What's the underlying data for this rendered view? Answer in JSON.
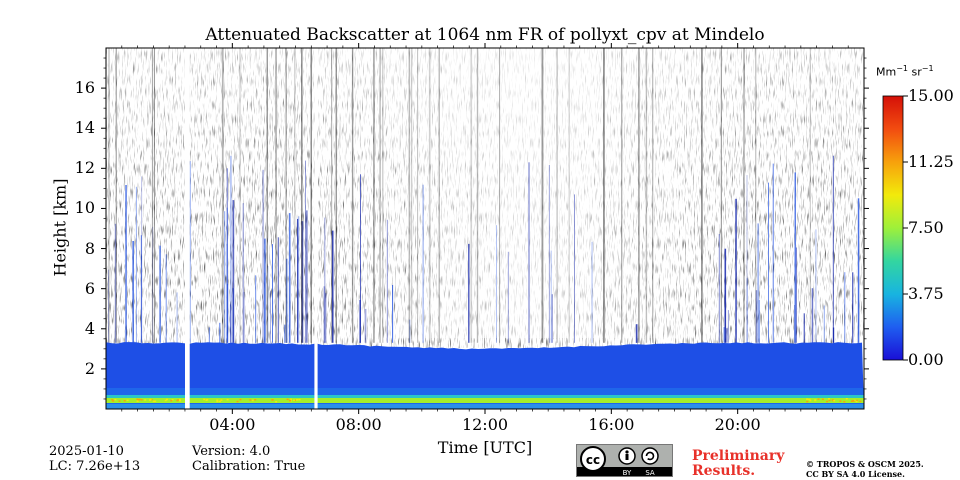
{
  "chart_data": {
    "type": "heatmap",
    "title": "Attenuated Backscatter at 1064 nm FR of pollyxt_cpv at Mindelo",
    "xlabel": "Time [UTC]",
    "ylabel": "Height [km]",
    "x_range_hours": [
      0,
      24
    ],
    "y_range_km": [
      0,
      18
    ],
    "x_ticks": [
      {
        "value": 4,
        "label": "04:00"
      },
      {
        "value": 8,
        "label": "08:00"
      },
      {
        "value": 12,
        "label": "12:00"
      },
      {
        "value": 16,
        "label": "16:00"
      },
      {
        "value": 20,
        "label": "20:00"
      }
    ],
    "y_ticks": [
      {
        "value": 2,
        "label": "2"
      },
      {
        "value": 4,
        "label": "4"
      },
      {
        "value": 6,
        "label": "6"
      },
      {
        "value": 8,
        "label": "8"
      },
      {
        "value": 10,
        "label": "10"
      },
      {
        "value": 12,
        "label": "12"
      },
      {
        "value": 14,
        "label": "14"
      },
      {
        "value": 16,
        "label": "16"
      }
    ],
    "colorbar": {
      "unit_base": "Mm",
      "unit_exp1": "−1",
      "unit_mid": "sr",
      "unit_exp2": "−1",
      "range": [
        0,
        15
      ],
      "ticks": [
        "0.00",
        "3.75",
        "7.50",
        "11.25",
        "15.00"
      ],
      "colors": [
        "#1a0fd6",
        "#1f5ef0",
        "#18b4e0",
        "#33e07a",
        "#c8f51c",
        "#f2ea0b",
        "#f7a10c",
        "#f24c10",
        "#d51008"
      ]
    },
    "boundary_layer_top_km": 3.3,
    "surface_layer_top_km": 0.9,
    "data_gaps_hours": [
      [
        2.5,
        2.65
      ],
      [
        6.6,
        6.7
      ]
    ]
  },
  "info": {
    "date": "2025-01-10",
    "lc": "LC: 7.26e+13",
    "version": "Version: 4.0",
    "calibration": "Calibration: True"
  },
  "license": {
    "badge_cc": "cc",
    "badge_by": "BY",
    "badge_sa": "SA",
    "prelim_line1": "Preliminary",
    "prelim_line2": "Results.",
    "copyright_line1": "© TROPOS & OSCM 2025.",
    "copyright_line2": "CC BY SA 4.0 License."
  }
}
